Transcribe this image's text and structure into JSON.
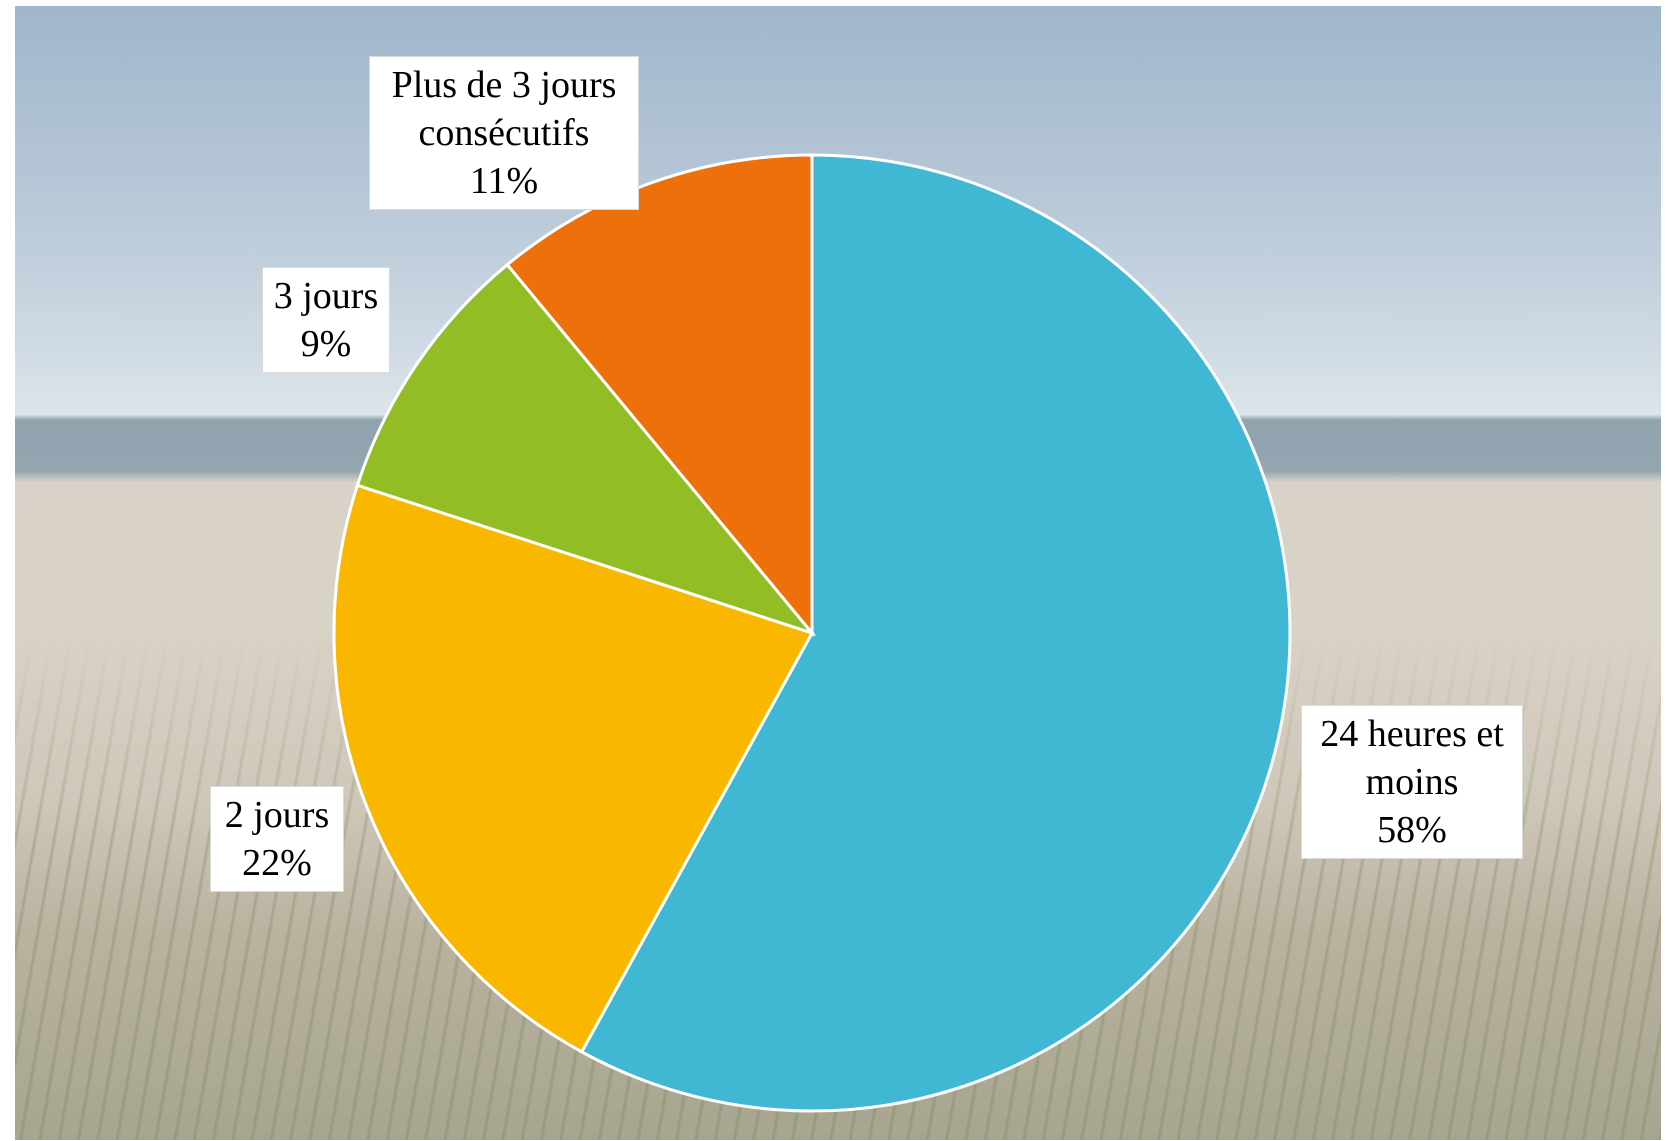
{
  "chart_data": {
    "type": "pie",
    "categories": [
      "24 heures et moins",
      "2 jours",
      "3 jours",
      "Plus de 3 jours consécutifs"
    ],
    "values": [
      58,
      22,
      9,
      11
    ],
    "value_labels": [
      "58%",
      "22%",
      "9%",
      "11%"
    ],
    "colors": [
      "#41b8d3",
      "#f9b700",
      "#93bd24",
      "#ee700a"
    ]
  }
}
